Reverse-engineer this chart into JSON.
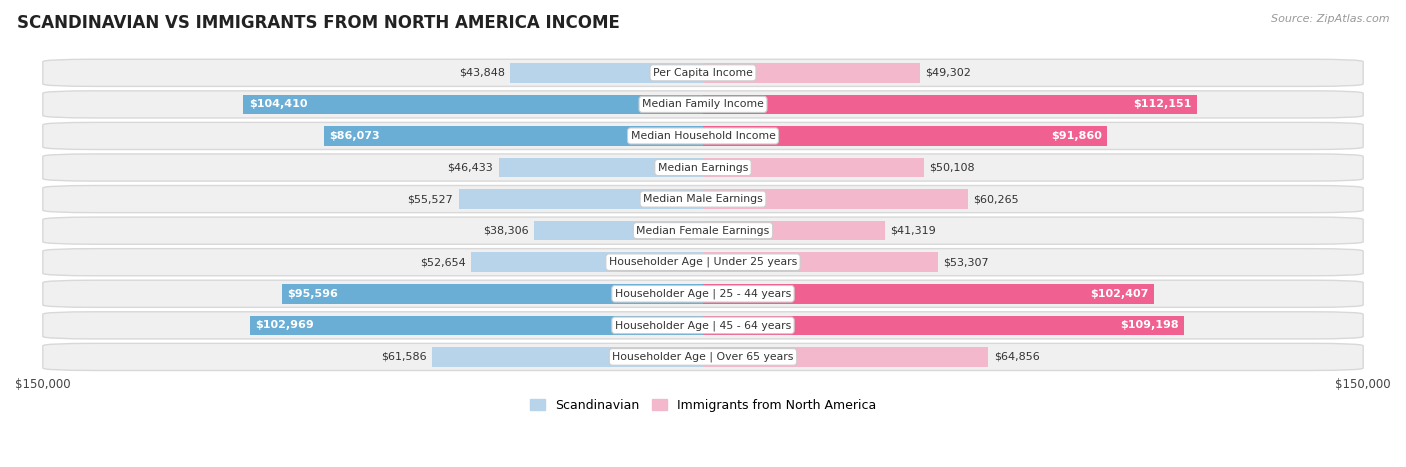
{
  "title": "SCANDINAVIAN VS IMMIGRANTS FROM NORTH AMERICA INCOME",
  "source": "Source: ZipAtlas.com",
  "categories": [
    "Per Capita Income",
    "Median Family Income",
    "Median Household Income",
    "Median Earnings",
    "Median Male Earnings",
    "Median Female Earnings",
    "Householder Age | Under 25 years",
    "Householder Age | 25 - 44 years",
    "Householder Age | 45 - 64 years",
    "Householder Age | Over 65 years"
  ],
  "scandinavian": [
    43848,
    104410,
    86073,
    46433,
    55527,
    38306,
    52654,
    95596,
    102969,
    61586
  ],
  "immigrants": [
    49302,
    112151,
    91860,
    50108,
    60265,
    41319,
    53307,
    102407,
    109198,
    64856
  ],
  "scandinavian_labels": [
    "$43,848",
    "$104,410",
    "$86,073",
    "$46,433",
    "$55,527",
    "$38,306",
    "$52,654",
    "$95,596",
    "$102,969",
    "$61,586"
  ],
  "immigrants_labels": [
    "$49,302",
    "$112,151",
    "$91,860",
    "$50,108",
    "$60,265",
    "$41,319",
    "$53,307",
    "$102,407",
    "$109,198",
    "$64,856"
  ],
  "color_scandinavian_light": "#b8d4ea",
  "color_scandinavian_dark": "#6aaed6",
  "color_immigrants_light": "#f4b8cc",
  "color_immigrants_dark": "#f06090",
  "max_value": 150000,
  "bar_height": 0.62,
  "row_bg": "#f0f0f0",
  "row_border": "#d8d8d8",
  "inside_label_threshold": 75000,
  "legend_scandinavian": "Scandinavian",
  "legend_immigrants": "Immigrants from North America"
}
